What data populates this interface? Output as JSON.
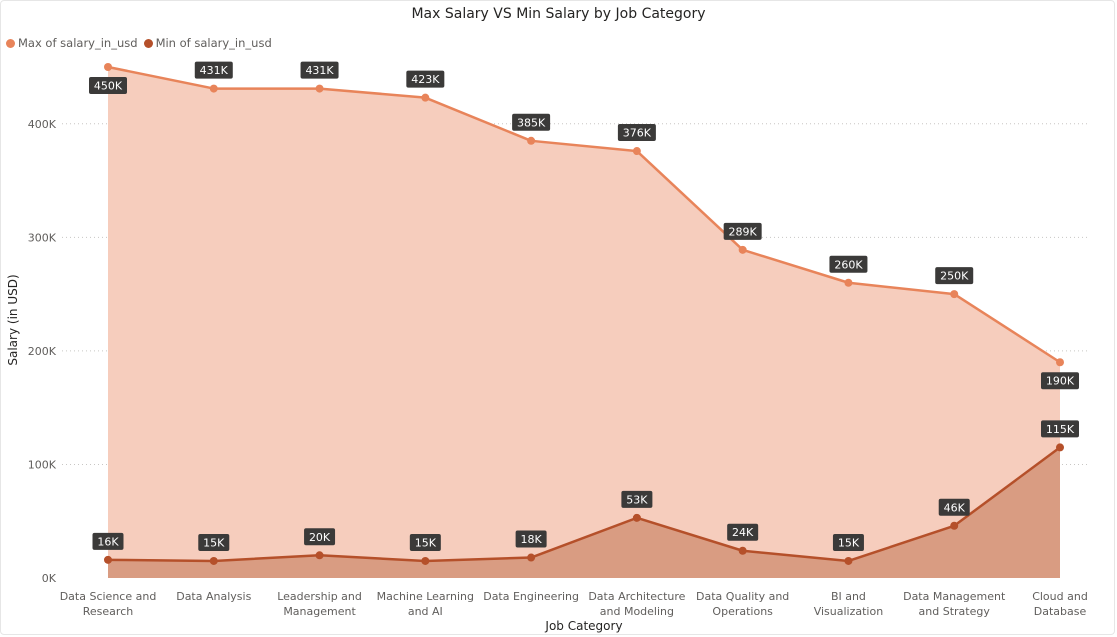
{
  "chart_data": {
    "type": "area",
    "title": "Max Salary VS Min Salary by Job Category",
    "xlabel": "Job Category",
    "ylabel": "Salary (in USD)",
    "ylim": [
      0,
      450000
    ],
    "yticks": [
      0,
      100000,
      200000,
      300000,
      400000
    ],
    "ytick_labels": [
      "0K",
      "100K",
      "200K",
      "300K",
      "400K"
    ],
    "grid": "horizontal dotted",
    "legend_position": "top-left",
    "categories": [
      [
        "Data Science and",
        "Research"
      ],
      [
        "Data Analysis"
      ],
      [
        "Leadership and",
        "Management"
      ],
      [
        "Machine Learning",
        "and AI"
      ],
      [
        "Data Engineering"
      ],
      [
        "Data Architecture",
        "and Modeling"
      ],
      [
        "Data Quality and",
        "Operations"
      ],
      [
        "BI and",
        "Visualization"
      ],
      [
        "Data Management",
        "and Strategy"
      ],
      [
        "Cloud and",
        "Database"
      ]
    ],
    "series": [
      {
        "name": "Max of salary_in_usd",
        "color": "#E8845A",
        "fill": "#F6CDBD",
        "values": [
          450000,
          431000,
          431000,
          423000,
          385000,
          376000,
          289000,
          260000,
          250000,
          190000
        ],
        "labels": [
          "450K",
          "431K",
          "431K",
          "423K",
          "385K",
          "376K",
          "289K",
          "260K",
          "250K",
          "190K"
        ],
        "label_side": [
          "below",
          "above",
          "above",
          "above",
          "above",
          "above",
          "above",
          "above",
          "above",
          "below"
        ]
      },
      {
        "name": "Min of salary_in_usd",
        "color": "#B5502A",
        "fill": "#D99C82",
        "values": [
          16000,
          15000,
          20000,
          15000,
          18000,
          53000,
          24000,
          15000,
          46000,
          115000
        ],
        "labels": [
          "16K",
          "15K",
          "20K",
          "15K",
          "18K",
          "53K",
          "24K",
          "15K",
          "46K",
          "115K"
        ],
        "label_side": [
          "above",
          "above",
          "above",
          "above",
          "above",
          "above",
          "above",
          "above",
          "above",
          "above"
        ]
      }
    ]
  }
}
